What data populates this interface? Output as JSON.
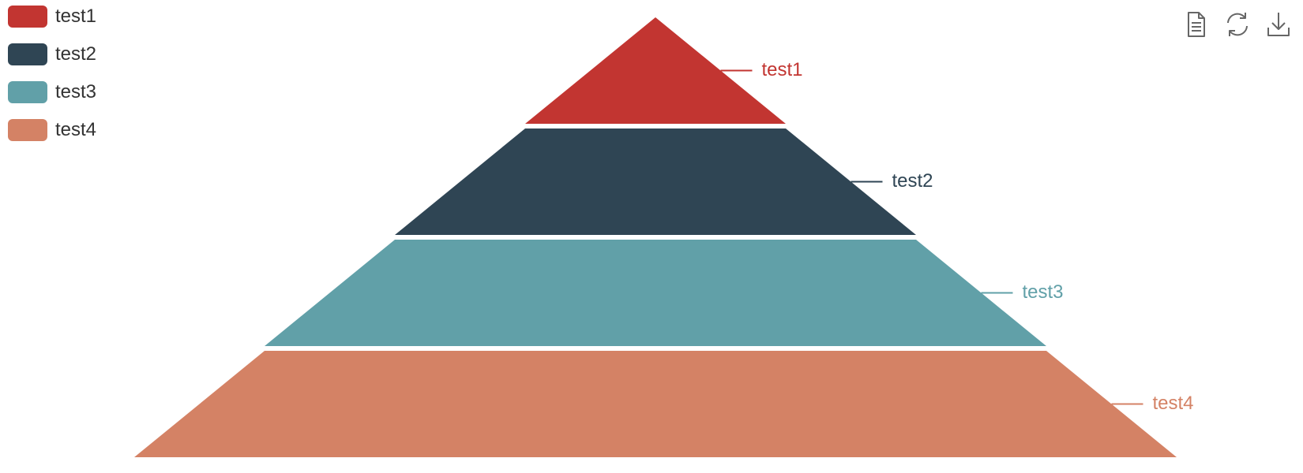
{
  "chart_data": {
    "type": "funnel",
    "sort": "ascending",
    "series": [
      {
        "name": "test1",
        "value": 25,
        "color": "#c23531"
      },
      {
        "name": "test2",
        "value": 50,
        "color": "#2f4554"
      },
      {
        "name": "test3",
        "value": 75,
        "color": "#61a0a8"
      },
      {
        "name": "test4",
        "value": 100,
        "color": "#d48265"
      }
    ],
    "legend_position": "top-left",
    "label_position": "right"
  },
  "toolbox": {
    "data_view_icon": "data-view-icon",
    "restore_icon": "restore-icon",
    "save_icon": "save-as-image-icon"
  }
}
